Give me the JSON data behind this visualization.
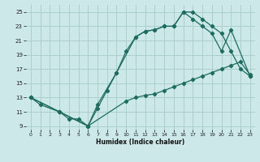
{
  "xlabel": "Humidex (Indice chaleur)",
  "bg_color": "#cce8e8",
  "grid_color": "#aacfcf",
  "line_color": "#1e6b60",
  "xlim": [
    -0.5,
    23.5
  ],
  "ylim": [
    8.5,
    26
  ],
  "xticks": [
    0,
    1,
    2,
    3,
    4,
    5,
    6,
    7,
    8,
    9,
    10,
    11,
    12,
    13,
    14,
    15,
    16,
    17,
    18,
    19,
    20,
    21,
    22,
    23
  ],
  "yticks": [
    9,
    11,
    13,
    15,
    17,
    19,
    21,
    23,
    25
  ],
  "line1_x": [
    0,
    1,
    3,
    4,
    5,
    6,
    7,
    8,
    9,
    10,
    11,
    12,
    13,
    14,
    15,
    16,
    17,
    18,
    19,
    20,
    21,
    22,
    23
  ],
  "line1_y": [
    13,
    12,
    11,
    10,
    10,
    9,
    11.5,
    14,
    16.5,
    19.5,
    21.5,
    22.3,
    22.5,
    23,
    23,
    25,
    25,
    24,
    23,
    22,
    19.5,
    17,
    16
  ],
  "line2_x": [
    0,
    3,
    6,
    10,
    11,
    12,
    13,
    14,
    15,
    16,
    17,
    18,
    19,
    20,
    21,
    22,
    23
  ],
  "line2_y": [
    13,
    11,
    9,
    12.5,
    13,
    13.3,
    13.5,
    14,
    14.5,
    15,
    15.5,
    16,
    16.5,
    17,
    17.5,
    18,
    16.2
  ],
  "line3_x": [
    0,
    3,
    6,
    7,
    9,
    11,
    12,
    13,
    14,
    15,
    16,
    17,
    18,
    19,
    20,
    21,
    23
  ],
  "line3_y": [
    13,
    11,
    9,
    12,
    16.5,
    21.5,
    22.3,
    22.5,
    23,
    23,
    25,
    24,
    23,
    22,
    19.5,
    22.5,
    16
  ]
}
